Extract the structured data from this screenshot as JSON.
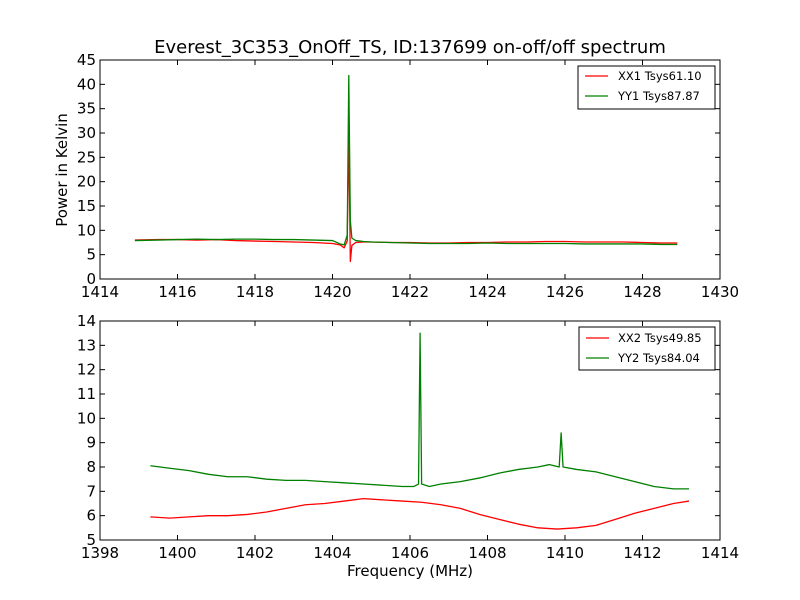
{
  "chart_data": [
    {
      "type": "line",
      "title": "Everest_3C353_OnOff_TS, ID:137699 on-off/off spectrum",
      "xlabel": "",
      "ylabel": "Power in Kelvin",
      "xlim": [
        1414,
        1430
      ],
      "ylim": [
        0,
        45
      ],
      "xticks": [
        "1414",
        "1416",
        "1418",
        "1420",
        "1422",
        "1424",
        "1426",
        "1428",
        "1430"
      ],
      "yticks": [
        "0",
        "5",
        "10",
        "15",
        "20",
        "25",
        "30",
        "35",
        "40",
        "45"
      ],
      "grid": false,
      "legend_position": "top-right",
      "series": [
        {
          "name": "XX1 Tsys61.10",
          "color": "#ff0000",
          "x": [
            1414.9,
            1415.5,
            1416.0,
            1416.5,
            1417.0,
            1417.5,
            1418.0,
            1418.5,
            1419.0,
            1419.5,
            1420.0,
            1420.2,
            1420.3,
            1420.38,
            1420.42,
            1420.46,
            1420.5,
            1420.6,
            1420.8,
            1421.0,
            1421.5,
            1422.0,
            1422.5,
            1423.0,
            1423.5,
            1424.0,
            1424.5,
            1425.0,
            1425.5,
            1426.0,
            1426.5,
            1427.0,
            1427.5,
            1428.0,
            1428.5,
            1428.9
          ],
          "y": [
            8.0,
            8.1,
            8.1,
            8.0,
            8.1,
            7.9,
            7.8,
            7.7,
            7.6,
            7.5,
            7.3,
            7.0,
            6.4,
            7.8,
            30.0,
            3.6,
            6.9,
            7.5,
            7.6,
            7.6,
            7.5,
            7.5,
            7.4,
            7.4,
            7.5,
            7.5,
            7.6,
            7.6,
            7.7,
            7.7,
            7.6,
            7.6,
            7.6,
            7.5,
            7.4,
            7.4
          ]
        },
        {
          "name": "YY1 Tsys87.87",
          "color": "#008000",
          "x": [
            1414.9,
            1415.5,
            1416.0,
            1416.5,
            1417.0,
            1417.5,
            1418.0,
            1418.5,
            1419.0,
            1419.5,
            1420.0,
            1420.2,
            1420.3,
            1420.38,
            1420.42,
            1420.46,
            1420.5,
            1420.6,
            1420.8,
            1421.0,
            1421.5,
            1422.0,
            1422.5,
            1423.0,
            1423.5,
            1424.0,
            1424.5,
            1425.0,
            1425.5,
            1426.0,
            1426.5,
            1427.0,
            1427.5,
            1428.0,
            1428.5,
            1428.9
          ],
          "y": [
            7.9,
            8.0,
            8.1,
            8.2,
            8.1,
            8.2,
            8.2,
            8.1,
            8.1,
            8.0,
            7.9,
            7.2,
            7.0,
            9.0,
            41.8,
            12.0,
            8.4,
            7.9,
            7.7,
            7.6,
            7.5,
            7.4,
            7.3,
            7.3,
            7.3,
            7.4,
            7.3,
            7.3,
            7.3,
            7.3,
            7.2,
            7.2,
            7.2,
            7.2,
            7.1,
            7.1
          ]
        }
      ]
    },
    {
      "type": "line",
      "title": "",
      "xlabel": "Frequency (MHz)",
      "ylabel": "",
      "xlim": [
        1398,
        1414
      ],
      "ylim": [
        5,
        14
      ],
      "xticks": [
        "1398",
        "1400",
        "1402",
        "1404",
        "1406",
        "1408",
        "1410",
        "1412",
        "1414"
      ],
      "yticks": [
        "5",
        "6",
        "7",
        "8",
        "9",
        "10",
        "11",
        "12",
        "13",
        "14"
      ],
      "grid": false,
      "legend_position": "top-right",
      "series": [
        {
          "name": "XX2 Tsys49.85",
          "color": "#ff0000",
          "x": [
            1399.3,
            1399.8,
            1400.3,
            1400.8,
            1401.3,
            1401.8,
            1402.3,
            1402.8,
            1403.3,
            1403.8,
            1404.3,
            1404.8,
            1405.3,
            1405.8,
            1406.3,
            1406.8,
            1407.3,
            1407.8,
            1408.3,
            1408.8,
            1409.3,
            1409.8,
            1410.3,
            1410.8,
            1411.3,
            1411.8,
            1412.3,
            1412.8,
            1413.2
          ],
          "y": [
            5.95,
            5.9,
            5.95,
            6.0,
            6.0,
            6.05,
            6.15,
            6.3,
            6.45,
            6.5,
            6.6,
            6.7,
            6.65,
            6.6,
            6.55,
            6.45,
            6.3,
            6.05,
            5.85,
            5.65,
            5.5,
            5.45,
            5.5,
            5.6,
            5.85,
            6.1,
            6.3,
            6.5,
            6.6
          ]
        },
        {
          "name": "YY2 Tsys84.04",
          "color": "#008000",
          "x": [
            1399.3,
            1399.8,
            1400.3,
            1400.8,
            1401.3,
            1401.8,
            1402.3,
            1402.8,
            1403.3,
            1403.8,
            1404.3,
            1404.8,
            1405.3,
            1405.8,
            1406.1,
            1406.22,
            1406.26,
            1406.3,
            1406.5,
            1406.8,
            1407.3,
            1407.8,
            1408.3,
            1408.8,
            1409.3,
            1409.6,
            1409.85,
            1409.9,
            1409.95,
            1410.3,
            1410.8,
            1411.3,
            1411.8,
            1412.3,
            1412.8,
            1413.2
          ],
          "y": [
            8.05,
            7.95,
            7.85,
            7.7,
            7.6,
            7.6,
            7.5,
            7.45,
            7.45,
            7.4,
            7.35,
            7.3,
            7.25,
            7.2,
            7.2,
            7.3,
            13.5,
            7.3,
            7.2,
            7.3,
            7.4,
            7.55,
            7.75,
            7.9,
            8.0,
            8.1,
            8.0,
            9.4,
            8.0,
            7.9,
            7.8,
            7.6,
            7.4,
            7.2,
            7.1,
            7.1
          ]
        }
      ]
    }
  ]
}
